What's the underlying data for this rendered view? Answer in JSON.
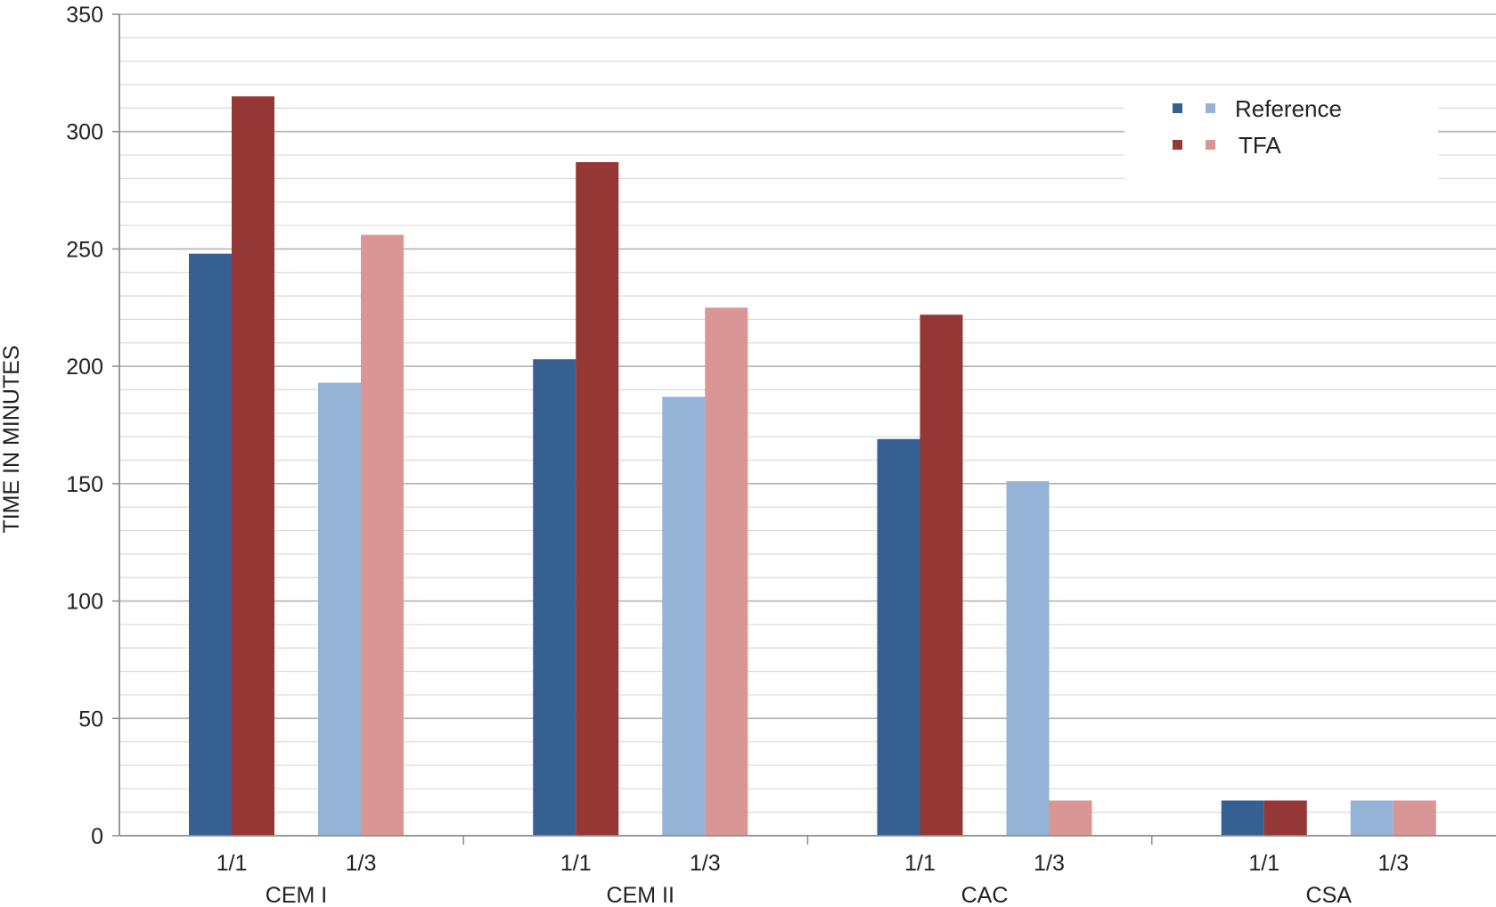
{
  "chart_data": {
    "type": "bar",
    "ylabel": "TIME IN MINUTES",
    "ylim": [
      0,
      350
    ],
    "yticks": [
      0,
      50,
      100,
      150,
      200,
      250,
      300,
      350
    ],
    "minor_grid_step": 10,
    "grid": true,
    "legend_position": "top-right",
    "groups": [
      {
        "name": "CEM I",
        "subgroups": [
          {
            "label": "1/1",
            "reference": 248,
            "tfa": 315
          },
          {
            "label": "1/3",
            "reference": 193,
            "tfa": 256
          }
        ]
      },
      {
        "name": "CEM II",
        "subgroups": [
          {
            "label": "1/1",
            "reference": 203,
            "tfa": 287
          },
          {
            "label": "1/3",
            "reference": 187,
            "tfa": 225
          }
        ]
      },
      {
        "name": "CAC",
        "subgroups": [
          {
            "label": "1/1",
            "reference": 169,
            "tfa": 222
          },
          {
            "label": "1/3",
            "reference": 151,
            "tfa": 15
          }
        ]
      },
      {
        "name": "CSA",
        "subgroups": [
          {
            "label": "1/1",
            "reference": 15,
            "tfa": 15
          },
          {
            "label": "1/3",
            "reference": 15,
            "tfa": 15
          }
        ]
      }
    ],
    "legend": [
      {
        "name": "Reference",
        "color_1_1": "#376092",
        "color_1_3": "#95b3d7"
      },
      {
        "name": "TFA",
        "color_1_1": "#953735",
        "color_1_3": "#d99694"
      }
    ],
    "colors": {
      "reference_1_1": "#376092",
      "reference_1_3": "#95b3d7",
      "tfa_1_1": "#953735",
      "tfa_1_3": "#d99694",
      "major_grid": "#b3b3b3",
      "minor_grid": "#d9d9d9",
      "axis": "#8c8c8c"
    }
  }
}
